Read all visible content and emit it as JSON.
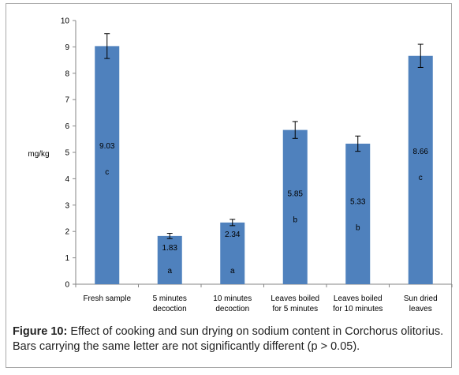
{
  "chart_data": {
    "type": "bar",
    "title": "",
    "xlabel": "",
    "ylabel": "mg/kg",
    "ylim": [
      0,
      10
    ],
    "yticks": [
      0,
      1,
      2,
      3,
      4,
      5,
      6,
      7,
      8,
      9,
      10
    ],
    "grid": false,
    "bar_color": "#4f81bd",
    "categories": [
      [
        "Fresh sample"
      ],
      [
        "5 minutes",
        "decoction"
      ],
      [
        "10 minutes",
        "decoction"
      ],
      [
        "Leaves boiled",
        "for 5 minutes"
      ],
      [
        "Leaves boiled",
        "for 10 minutes"
      ],
      [
        "Sun dried",
        "leaves"
      ]
    ],
    "values": [
      9.03,
      1.83,
      2.34,
      5.85,
      5.33,
      8.66
    ],
    "errors": [
      0.47,
      0.1,
      0.12,
      0.32,
      0.29,
      0.44
    ],
    "value_labels": [
      "9.03",
      "1.83",
      "2.34",
      "5.85",
      "5.33",
      "8.66"
    ],
    "letters": [
      "c",
      "a",
      "a",
      "b",
      "b",
      "c"
    ]
  },
  "caption": {
    "label": "Figure 10:",
    "text": "Effect of cooking and sun drying on sodium content in Corchorus olitorius. Bars carrying the same letter are not significantly different (p > 0.05)."
  }
}
